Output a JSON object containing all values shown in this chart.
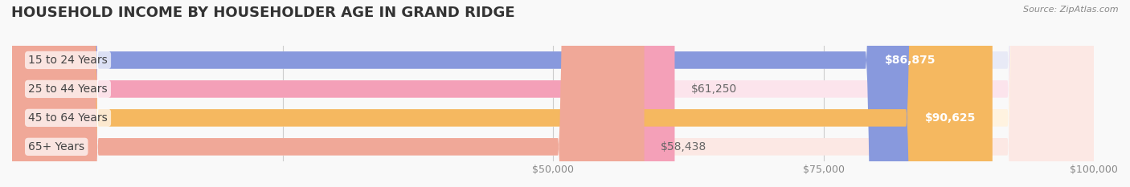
{
  "title": "HOUSEHOLD INCOME BY HOUSEHOLDER AGE IN GRAND RIDGE",
  "source": "Source: ZipAtlas.com",
  "categories": [
    "15 to 24 Years",
    "25 to 44 Years",
    "45 to 64 Years",
    "65+ Years"
  ],
  "values": [
    86875,
    61250,
    90625,
    58438
  ],
  "bar_colors": [
    "#8899dd",
    "#f4a0b8",
    "#f5b860",
    "#f0a898"
  ],
  "bar_bg_colors": [
    "#e8eaf6",
    "#fce4ec",
    "#fff3e0",
    "#fce8e4"
  ],
  "label_colors": [
    "#ffffff",
    "#888888",
    "#ffffff",
    "#888888"
  ],
  "x_min": 0,
  "x_max": 100000,
  "x_ticks": [
    0,
    25000,
    50000,
    75000,
    100000
  ],
  "x_tick_labels": [
    "",
    "",
    "$50,000",
    "$75,000",
    "$100,000"
  ],
  "figsize": [
    14.06,
    2.33
  ],
  "dpi": 100,
  "title_fontsize": 13,
  "bar_height": 0.6,
  "label_fontsize": 10,
  "category_fontsize": 10,
  "value_label_inside_threshold": 75000
}
